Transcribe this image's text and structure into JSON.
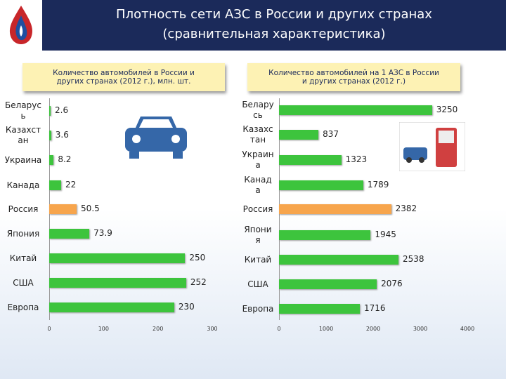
{
  "header": {
    "title": [
      "Плотность сети АЗС в России и других странах",
      "(сравнительная характеристика)"
    ]
  },
  "chart_data": [
    {
      "type": "bar",
      "orientation": "horizontal",
      "title": "Количество автомобилей в России и других странах (2012 г.), млн. шт.",
      "categories": [
        "Беларусь",
        "Казахстан",
        "Украина",
        "Канада",
        "Россия",
        "Япония",
        "Китай",
        "США",
        "Европа"
      ],
      "values": [
        2.6,
        3.6,
        8.2,
        22,
        50.5,
        73.9,
        250,
        252,
        230
      ],
      "colors": [
        "#3dc43d",
        "#3dc43d",
        "#3dc43d",
        "#3dc43d",
        "#f7a54c",
        "#3dc43d",
        "#3dc43d",
        "#3dc43d",
        "#3dc43d"
      ],
      "xlim": [
        0,
        300
      ],
      "xticks": [
        0,
        100,
        200,
        300
      ]
    },
    {
      "type": "bar",
      "orientation": "horizontal",
      "title": "Количество автомобилей на 1 АЗС в России и других странах (2012 г.)",
      "categories": [
        "Беларусь",
        "Казахстан",
        "Украина",
        "Канада",
        "Россия",
        "Япония",
        "Китай",
        "США",
        "Европа"
      ],
      "values": [
        3250,
        837,
        1323,
        1789,
        2382,
        1945,
        2538,
        2076,
        1716
      ],
      "colors": [
        "#3dc43d",
        "#3dc43d",
        "#3dc43d",
        "#3dc43d",
        "#f7a54c",
        "#3dc43d",
        "#3dc43d",
        "#3dc43d",
        "#3dc43d"
      ],
      "xlim": [
        0,
        4000
      ],
      "xticks": [
        0,
        1000,
        2000,
        3000,
        4000
      ]
    }
  ]
}
